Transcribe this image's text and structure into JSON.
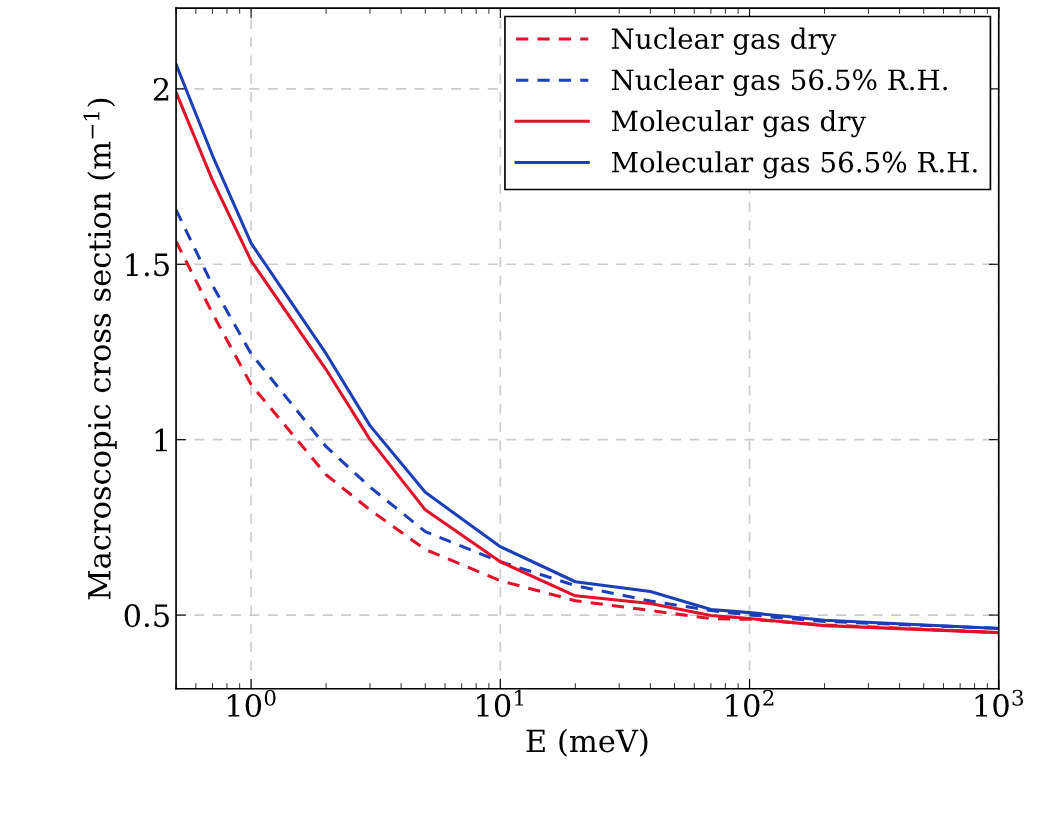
{
  "chart_data": {
    "type": "line",
    "xlabel": "E (meV)",
    "ylabel": "Macroscopic cross section (m$^{−1}$)",
    "log": "x",
    "xlim": [
      0.5,
      1000
    ],
    "ylim": [
      0.29,
      2.23
    ],
    "xticks": [
      {
        "value": 1,
        "label": "10$^{0}$"
      },
      {
        "value": 10,
        "label": "10$^{1}$"
      },
      {
        "value": 100,
        "label": "10$^{2}$"
      },
      {
        "value": 1000,
        "label": "10$^{3}$"
      }
    ],
    "yticks": [
      0.5,
      1,
      1.5,
      2
    ],
    "grid": true,
    "legend": "top right",
    "x": [
      0.5,
      0.7,
      1,
      2,
      3,
      5,
      10,
      20,
      40,
      70,
      100,
      200,
      1000
    ],
    "series": [
      {
        "name": "Nuclear gas dry",
        "color": "#e3102a",
        "line_style": "dashed",
        "values": [
          1.565,
          1.36,
          1.157,
          0.9,
          0.8,
          0.687,
          0.598,
          0.541,
          0.513,
          0.49,
          0.488,
          0.472,
          0.45
        ]
      },
      {
        "name": "Nuclear gas 56.5% R.H.",
        "color": "#1a3fb8",
        "line_style": "dashed",
        "values": [
          1.655,
          1.44,
          1.245,
          0.98,
          0.865,
          0.738,
          0.652,
          0.584,
          0.54,
          0.513,
          0.5,
          0.482,
          0.462
        ]
      },
      {
        "name": "Molecular gas dry",
        "color": "#e3102a",
        "line_style": "solid",
        "values": [
          1.99,
          1.74,
          1.51,
          1.2,
          1.0,
          0.8,
          0.652,
          0.555,
          0.533,
          0.499,
          0.49,
          0.47,
          0.45
        ]
      },
      {
        "name": "Molecular gas 56.5% R.H.",
        "color": "#1a3fb8",
        "line_style": "solid",
        "values": [
          2.07,
          1.81,
          1.56,
          1.245,
          1.04,
          0.85,
          0.695,
          0.595,
          0.567,
          0.516,
          0.507,
          0.485,
          0.462
        ]
      }
    ]
  }
}
